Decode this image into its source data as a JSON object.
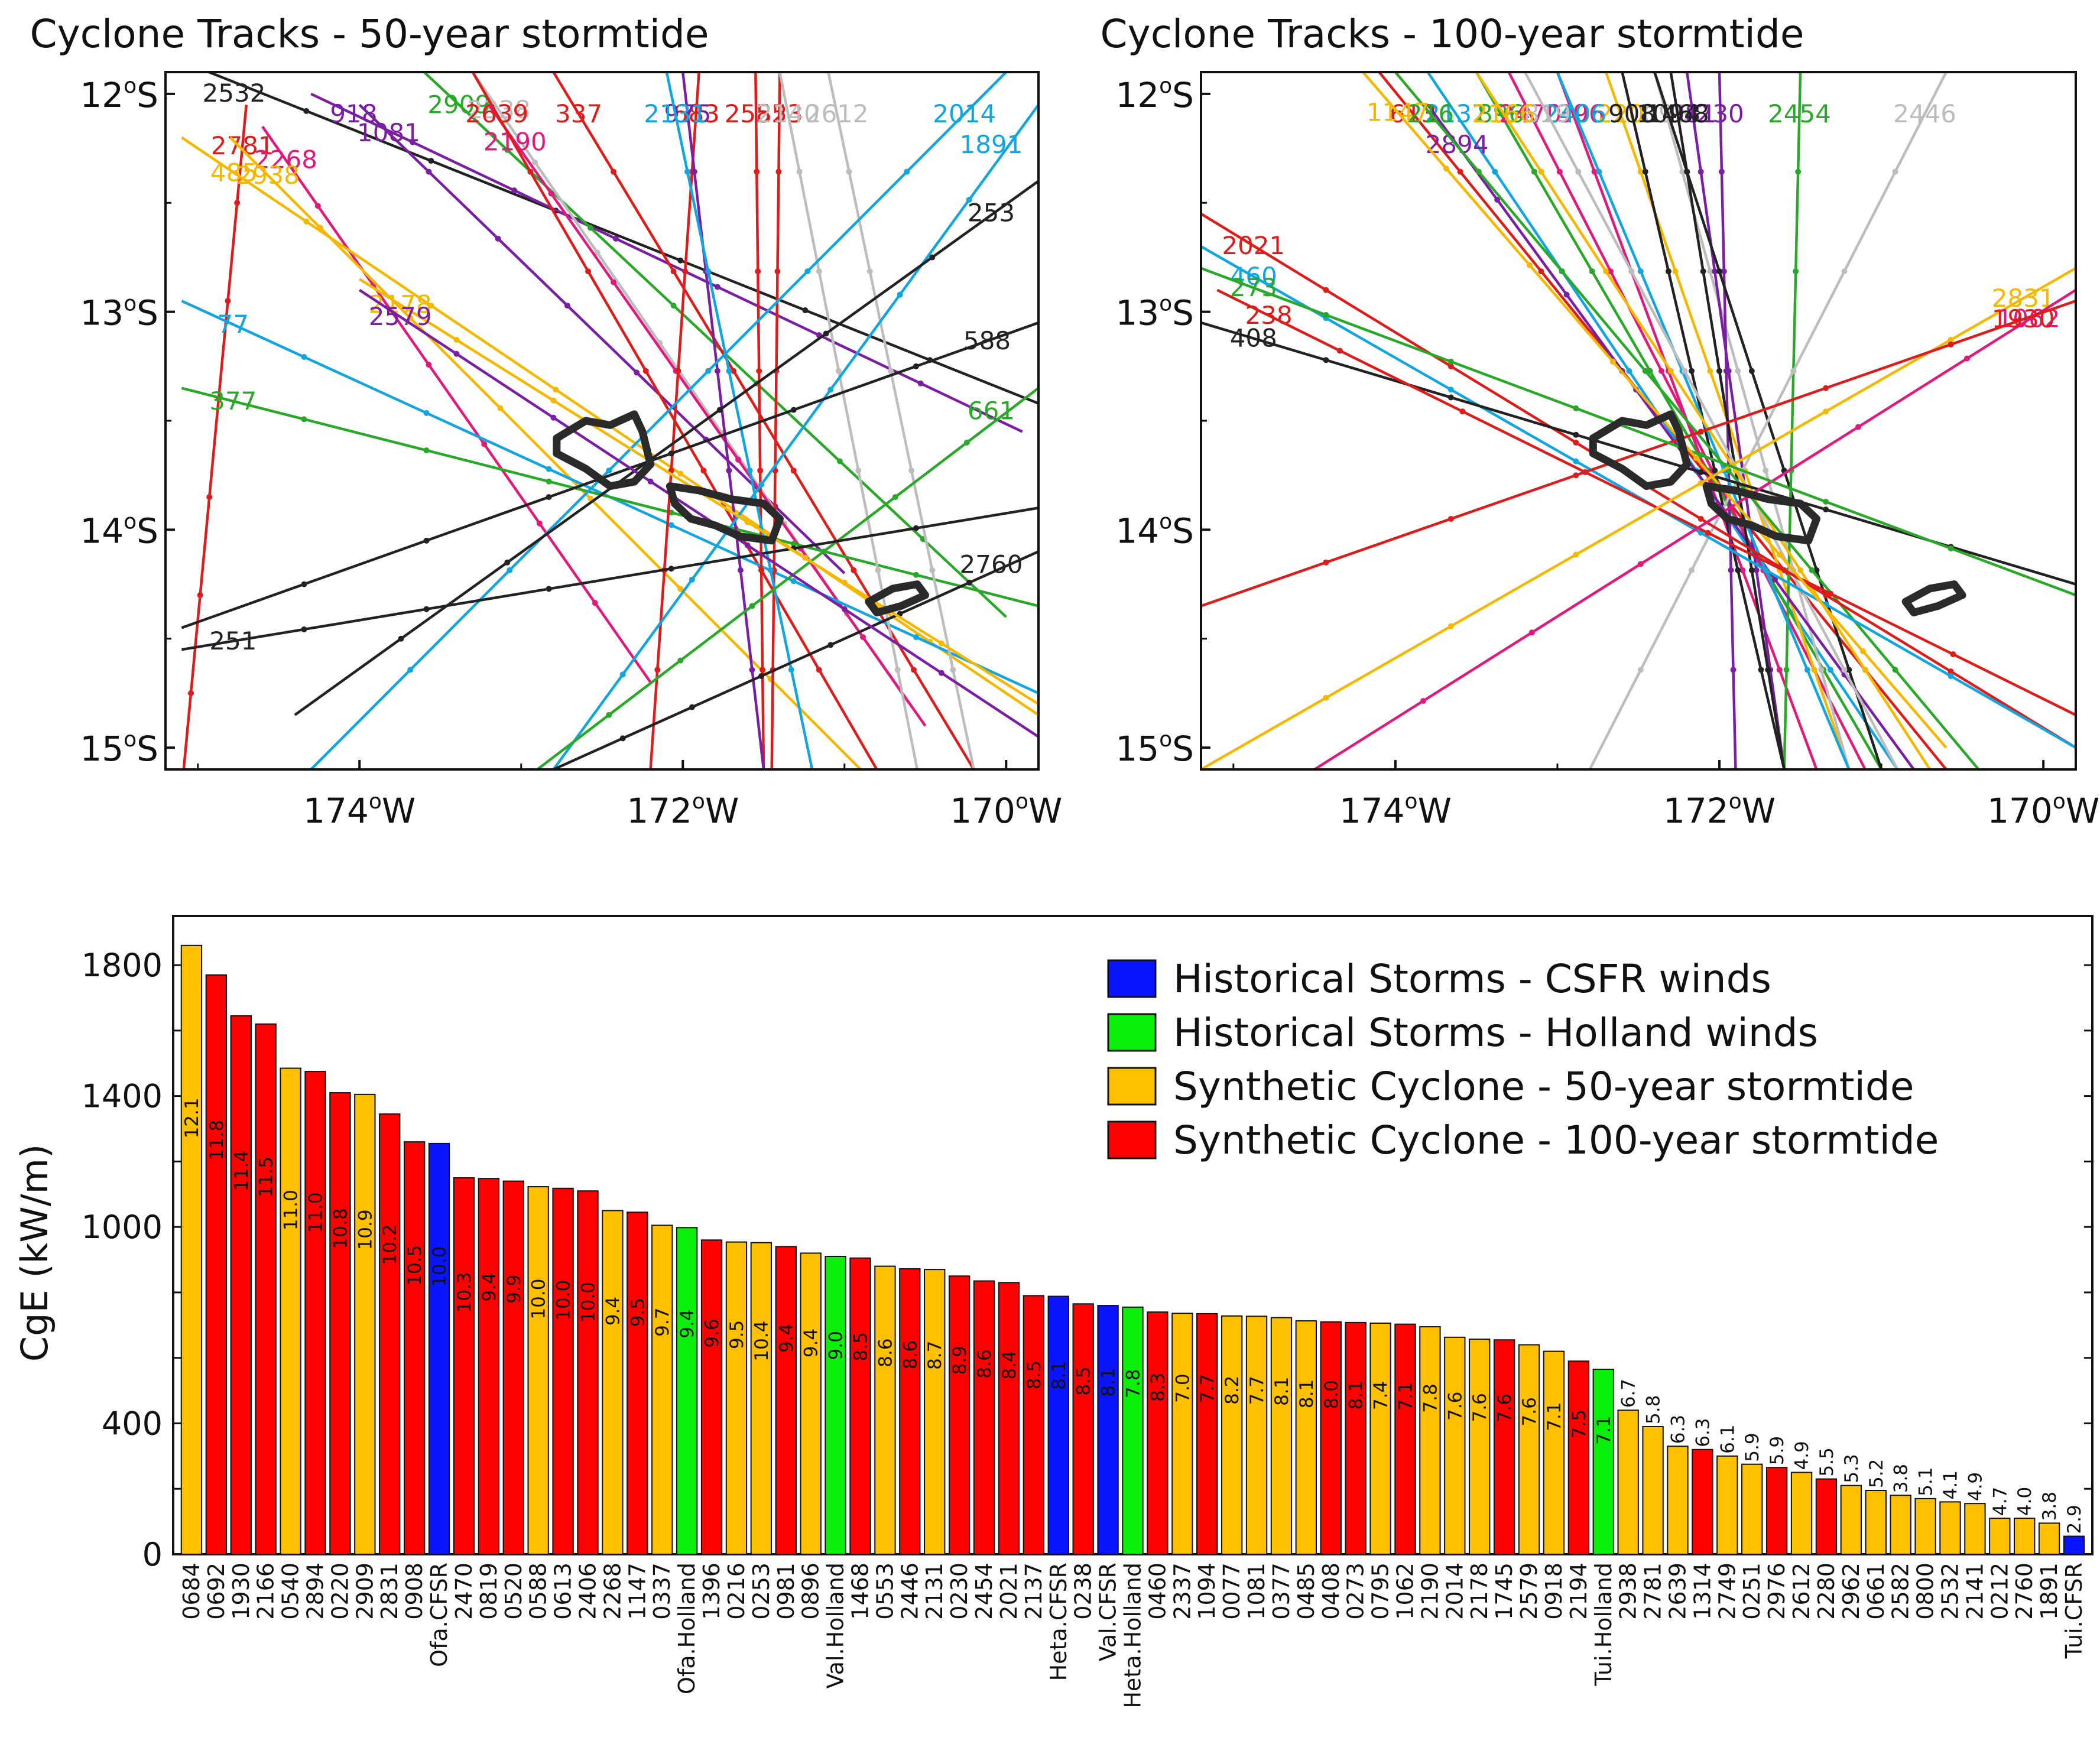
{
  "chart_data": [
    {
      "type": "map",
      "title": "Cyclone Tracks - 50-year stormtide",
      "x_ticks": [
        "174",
        "172",
        "170"
      ],
      "x_tick_values": [
        -174,
        -172,
        -170
      ],
      "x_suffix": "W",
      "y_ticks": [
        "12",
        "13",
        "14",
        "15"
      ],
      "y_tick_values": [
        -12,
        -13,
        -14,
        -15
      ],
      "y_suffix": "S",
      "degree_mark": "o",
      "xlim": [
        -175.2,
        -169.8
      ],
      "ylim": [
        -15.1,
        -11.9
      ],
      "tracks": [
        {
          "label": "2532",
          "color": "#222222",
          "start": [
            -175.1,
            -11.85
          ],
          "end": [
            -169.7,
            -13.45
          ]
        },
        {
          "label": "2781",
          "color": "#dd1c1c",
          "start": [
            -174.7,
            -12.05
          ],
          "end": [
            -175.1,
            -15.2
          ]
        },
        {
          "label": "918",
          "color": "#7a1fa2",
          "start": [
            -174.3,
            -12.0
          ],
          "end": [
            -169.9,
            -13.55
          ]
        },
        {
          "label": "1081",
          "color": "#7a1fa2",
          "start": [
            -174.0,
            -12.05
          ],
          "end": [
            -171.0,
            -14.2
          ]
        },
        {
          "label": "2268",
          "color": "#e0197d",
          "start": [
            -174.6,
            -12.15
          ],
          "end": [
            -172.2,
            -14.7
          ]
        },
        {
          "label": "2909",
          "color": "#2aa82a",
          "start": [
            -173.6,
            -11.9
          ],
          "end": [
            -170.0,
            -14.4
          ]
        },
        {
          "label": "2338",
          "color": "#bdbdbd",
          "start": [
            -173.3,
            -11.9
          ],
          "end": [
            -170.6,
            -14.8
          ]
        },
        {
          "label": "2190",
          "color": "#e0197d",
          "start": [
            -173.2,
            -12.05
          ],
          "end": [
            -170.5,
            -14.9
          ]
        },
        {
          "label": "2639",
          "color": "#dd1c1c",
          "start": [
            -173.3,
            -11.9
          ],
          "end": [
            -170.8,
            -15.1
          ]
        },
        {
          "label": "337",
          "color": "#dd1c1c",
          "start": [
            -172.8,
            -11.9
          ],
          "end": [
            -170.2,
            -15.1
          ]
        },
        {
          "label": "2938",
          "color": "#f5b800",
          "start": [
            -174.8,
            -12.2
          ],
          "end": [
            -170.9,
            -15.1
          ]
        },
        {
          "label": "485",
          "color": "#f5b800",
          "start": [
            -175.1,
            -12.2
          ],
          "end": [
            -169.7,
            -14.9
          ]
        },
        {
          "label": "77",
          "color": "#12a5de",
          "start": [
            -175.1,
            -12.95
          ],
          "end": [
            -169.8,
            -14.75
          ]
        },
        {
          "label": "377",
          "color": "#2aa82a",
          "start": [
            -175.1,
            -13.35
          ],
          "end": [
            -169.8,
            -14.35
          ]
        },
        {
          "label": "683",
          "color": "#dd1c1c",
          "start": [
            -171.9,
            -11.9
          ],
          "end": [
            -172.2,
            -15.1
          ]
        },
        {
          "label": "2582",
          "color": "#dd1c1c",
          "start": [
            -171.55,
            -11.9
          ],
          "end": [
            -171.5,
            -15.1
          ]
        },
        {
          "label": "553",
          "color": "#dd1c1c",
          "start": [
            -171.4,
            -11.9
          ],
          "end": [
            -171.45,
            -15.1
          ]
        },
        {
          "label": "975",
          "color": "#7a1fa2",
          "start": [
            -172.0,
            -11.9
          ],
          "end": [
            -171.5,
            -15.1
          ]
        },
        {
          "label": "2131",
          "color": "#12a5de",
          "start": [
            -172.1,
            -11.9
          ],
          "end": [
            -171.2,
            -15.1
          ]
        },
        {
          "label": "2140",
          "color": "#bdbdbd",
          "start": [
            -171.4,
            -11.9
          ],
          "end": [
            -170.55,
            -15.1
          ]
        },
        {
          "label": "2612",
          "color": "#bdbdbd",
          "start": [
            -171.1,
            -11.9
          ],
          "end": [
            -170.2,
            -15.1
          ]
        },
        {
          "label": "2014",
          "color": "#12a5de",
          "start": [
            -170.0,
            -11.9
          ],
          "end": [
            -174.3,
            -15.1
          ]
        },
        {
          "label": "1891",
          "color": "#12a5de",
          "start": [
            -169.8,
            -12.05
          ],
          "end": [
            -172.8,
            -15.1
          ]
        },
        {
          "label": "253",
          "color": "#222222",
          "start": [
            -169.8,
            -12.4
          ],
          "end": [
            -174.4,
            -14.85
          ]
        },
        {
          "label": "588",
          "color": "#222222",
          "start": [
            -169.8,
            -13.05
          ],
          "end": [
            -175.1,
            -14.45
          ]
        },
        {
          "label": "661",
          "color": "#2aa82a",
          "start": [
            -169.8,
            -13.35
          ],
          "end": [
            -172.9,
            -15.1
          ]
        },
        {
          "label": "251",
          "color": "#222222",
          "start": [
            -175.1,
            -14.55
          ],
          "end": [
            -169.8,
            -13.9
          ]
        },
        {
          "label": "2760",
          "color": "#222222",
          "start": [
            -169.8,
            -14.1
          ],
          "end": [
            -172.8,
            -15.1
          ]
        },
        {
          "label": "2178",
          "color": "#f5b800",
          "start": [
            -174.0,
            -12.85
          ],
          "end": [
            -169.8,
            -14.8
          ]
        },
        {
          "label": "2579",
          "color": "#7a1fa2",
          "start": [
            -174.0,
            -12.9
          ],
          "end": [
            -169.8,
            -14.95
          ]
        }
      ]
    },
    {
      "type": "map",
      "title": "Cyclone Tracks - 100-year stormtide",
      "x_ticks": [
        "174",
        "172",
        "170"
      ],
      "x_tick_values": [
        -174,
        -172,
        -170
      ],
      "x_suffix": "W",
      "y_ticks": [
        "12",
        "13",
        "14",
        "15"
      ],
      "y_tick_values": [
        -12,
        -13,
        -14,
        -15
      ],
      "y_suffix": "S",
      "degree_mark": "o",
      "xlim": [
        -175.2,
        -169.8
      ],
      "ylim": [
        -15.1,
        -11.9
      ],
      "tracks": [
        {
          "label": "613",
          "color": "#dd1c1c",
          "start": [
            -174.1,
            -11.9
          ],
          "end": [
            -170.6,
            -15.1
          ]
        },
        {
          "label": "2137",
          "color": "#12a5de",
          "start": [
            -173.8,
            -11.9
          ],
          "end": [
            -170.9,
            -15.1
          ]
        },
        {
          "label": "896",
          "color": "#2aa82a",
          "start": [
            -173.5,
            -11.9
          ],
          "end": [
            -171.0,
            -15.1
          ]
        },
        {
          "label": "1396",
          "color": "#e0197d",
          "start": [
            -173.0,
            -11.9
          ],
          "end": [
            -171.4,
            -15.1
          ]
        },
        {
          "label": "2470",
          "color": "#e0197d",
          "start": [
            -173.3,
            -11.9
          ],
          "end": [
            -171.1,
            -15.1
          ]
        },
        {
          "label": "220",
          "color": "#f5b800",
          "start": [
            -172.7,
            -11.9
          ],
          "end": [
            -171.2,
            -15.1
          ]
        },
        {
          "label": "695",
          "color": "#bdbdbd",
          "start": [
            -172.4,
            -11.9
          ],
          "end": [
            -171.2,
            -15.1
          ]
        },
        {
          "label": "908",
          "color": "#222222",
          "start": [
            -172.6,
            -11.9
          ],
          "end": [
            -171.6,
            -15.1
          ]
        },
        {
          "label": "981",
          "color": "#7a1fa2",
          "start": [
            -172.2,
            -11.9
          ],
          "end": [
            -171.6,
            -15.1
          ]
        },
        {
          "label": "230",
          "color": "#7a1fa2",
          "start": [
            -172.0,
            -11.9
          ],
          "end": [
            -171.9,
            -15.1
          ]
        },
        {
          "label": "1094",
          "color": "#222222",
          "start": [
            -172.4,
            -11.9
          ],
          "end": [
            -171.0,
            -15.1
          ]
        },
        {
          "label": "2454",
          "color": "#2aa82a",
          "start": [
            -171.5,
            -11.9
          ],
          "end": [
            -171.6,
            -15.1
          ]
        },
        {
          "label": "2446",
          "color": "#bdbdbd",
          "start": [
            -170.6,
            -11.9
          ],
          "end": [
            -172.8,
            -15.1
          ]
        },
        {
          "label": "2894",
          "color": "#7a1fa2",
          "start": [
            -173.8,
            -12.05
          ],
          "end": [
            -170.8,
            -15.1
          ]
        },
        {
          "label": "2406",
          "color": "#12a5de",
          "start": [
            -173.0,
            -11.9
          ],
          "end": [
            -171.2,
            -15.1
          ]
        },
        {
          "label": "1468",
          "color": "#222222",
          "start": [
            -172.3,
            -11.9
          ],
          "end": [
            -171.6,
            -15.1
          ]
        },
        {
          "label": "819",
          "color": "#bdbdbd",
          "start": [
            -173.2,
            -11.9
          ],
          "end": [
            -170.9,
            -15.1
          ]
        },
        {
          "label": "2166",
          "color": "#f5b800",
          "start": [
            -173.5,
            -11.9
          ],
          "end": [
            -170.7,
            -15.1
          ]
        },
        {
          "label": "216",
          "color": "#2aa82a",
          "start": [
            -174.0,
            -11.9
          ],
          "end": [
            -170.4,
            -15.1
          ]
        },
        {
          "label": "2021",
          "color": "#dd1c1c",
          "start": [
            -175.2,
            -12.55
          ],
          "end": [
            -169.8,
            -15.0
          ]
        },
        {
          "label": "460",
          "color": "#12a5de",
          "start": [
            -175.2,
            -12.7
          ],
          "end": [
            -169.8,
            -15.0
          ]
        },
        {
          "label": "408",
          "color": "#222222",
          "start": [
            -175.2,
            -13.05
          ],
          "end": [
            -169.8,
            -14.25
          ]
        },
        {
          "label": "238",
          "color": "#dd1c1c",
          "start": [
            -175.1,
            -12.9
          ],
          "end": [
            -169.8,
            -14.85
          ]
        },
        {
          "label": "2831",
          "color": "#f5b800",
          "start": [
            -169.8,
            -12.8
          ],
          "end": [
            -175.2,
            -15.1
          ]
        },
        {
          "label": "1062",
          "color": "#e0197d",
          "start": [
            -169.8,
            -12.9
          ],
          "end": [
            -174.5,
            -15.1
          ]
        },
        {
          "label": "1930",
          "color": "#dd1c1c",
          "start": [
            -169.8,
            -12.95
          ],
          "end": [
            -175.2,
            -14.35
          ]
        },
        {
          "label": "273",
          "color": "#2aa82a",
          "start": [
            -175.2,
            -12.8
          ],
          "end": [
            -169.8,
            -14.3
          ]
        },
        {
          "label": "1147",
          "color": "#f5b800",
          "start": [
            -174.2,
            -11.9
          ],
          "end": [
            -170.6,
            -15.0
          ]
        }
      ]
    },
    {
      "type": "bar",
      "ylabel": "CgE (kW/m)",
      "ylim": [
        0,
        1950
      ],
      "y_ticks": [
        0,
        400,
        1000,
        1400,
        1800
      ],
      "y_minor_step": 200,
      "legend_position": "top-right",
      "legend": [
        {
          "label": "Historical Storms - CSFR winds",
          "color": "#0a14ff"
        },
        {
          "label": "Historical Storms - Holland winds",
          "color": "#0af00a"
        },
        {
          "label": "Synthetic Cyclone - 50-year stormtide",
          "color": "#ffc000"
        },
        {
          "label": "Synthetic Cyclone - 100-year stormtide",
          "color": "#ff0000"
        }
      ],
      "series_colors": {
        "csfr": "#0a14ff",
        "holland": "#0af00a",
        "s50": "#ffc000",
        "s100": "#ff0000"
      },
      "categories": [
        "0684",
        "0692",
        "1930",
        "2166",
        "0540",
        "2894",
        "0220",
        "2909",
        "2831",
        "0908",
        "Ofa.CFSR",
        "2470",
        "0819",
        "0520",
        "0588",
        "0613",
        "2406",
        "2268",
        "1147",
        "0337",
        "Ofa.Holland",
        "1396",
        "0216",
        "0253",
        "0981",
        "0896",
        "Val.Holland",
        "1468",
        "0553",
        "2446",
        "2131",
        "0230",
        "2454",
        "2021",
        "2137",
        "Heta.CFSR",
        "0238",
        "Val.CFSR",
        "Heta.Holland",
        "0460",
        "2337",
        "1094",
        "0077",
        "1081",
        "0377",
        "0485",
        "0408",
        "0273",
        "0795",
        "1062",
        "2190",
        "2014",
        "2178",
        "1745",
        "2579",
        "0918",
        "2194",
        "Tui.Holland",
        "2938",
        "2781",
        "2639",
        "1314",
        "2749",
        "0251",
        "2976",
        "2612",
        "2280",
        "2962",
        "0661",
        "2582",
        "0800",
        "2532",
        "2141",
        "0212",
        "2760",
        "1891",
        "Tui.CFSR"
      ],
      "values": [
        1860,
        1770,
        1645,
        1620,
        1485,
        1475,
        1410,
        1405,
        1345,
        1260,
        1255,
        1150,
        1148,
        1140,
        1123,
        1118,
        1110,
        1050,
        1045,
        1005,
        998,
        960,
        954,
        952,
        940,
        920,
        910,
        905,
        880,
        872,
        870,
        850,
        835,
        830,
        790,
        788,
        765,
        760,
        755,
        740,
        736,
        735,
        728,
        727,
        723,
        713,
        710,
        708,
        706,
        703,
        695,
        663,
        657,
        655,
        640,
        620,
        590,
        565,
        440,
        390,
        330,
        320,
        300,
        275,
        265,
        250,
        230,
        210,
        195,
        180,
        170,
        160,
        155,
        110,
        110,
        95,
        55
      ],
      "types": [
        "s50",
        "s100",
        "s100",
        "s100",
        "s50",
        "s100",
        "s100",
        "s50",
        "s100",
        "s100",
        "csfr",
        "s100",
        "s100",
        "s100",
        "s50",
        "s100",
        "s100",
        "s50",
        "s100",
        "s50",
        "holland",
        "s100",
        "s50",
        "s50",
        "s100",
        "s50",
        "holland",
        "s100",
        "s50",
        "s100",
        "s50",
        "s100",
        "s100",
        "s100",
        "s100",
        "csfr",
        "s100",
        "csfr",
        "holland",
        "s100",
        "s50",
        "s100",
        "s50",
        "s50",
        "s50",
        "s50",
        "s100",
        "s100",
        "s50",
        "s100",
        "s50",
        "s50",
        "s50",
        "s100",
        "s50",
        "s50",
        "s100",
        "holland",
        "s50",
        "s50",
        "s50",
        "s100",
        "s50",
        "s50",
        "s100",
        "s50",
        "s100",
        "s50",
        "s50",
        "s50",
        "s50",
        "s50",
        "s50",
        "s50",
        "s50",
        "s50",
        "csfr"
      ],
      "bar_labels": [
        "12.1",
        "11.8",
        "11.4",
        "11.5",
        "11.0",
        "11.0",
        "10.8",
        "10.9",
        "10.2",
        "10.5",
        "10.0",
        "10.3",
        "9.4",
        "9.9",
        "10.0",
        "10.0",
        "10.0",
        "9.4",
        "9.5",
        "9.7",
        "9.4",
        "9.6",
        "9.5",
        "10.4",
        "9.4",
        "9.4",
        "9.0",
        "8.5",
        "8.6",
        "8.6",
        "8.7",
        "8.9",
        "8.6",
        "8.4",
        "8.5",
        "8.1",
        "8.5",
        "8.1",
        "7.8",
        "8.3",
        "7.0",
        "7.7",
        "8.2",
        "7.7",
        "8.1",
        "8.1",
        "8.0",
        "8.1",
        "7.4",
        "7.1",
        "7.8",
        "7.6",
        "7.6",
        "7.6",
        "7.6",
        "7.1",
        "7.5",
        "7.1",
        "6.7",
        "5.8",
        "6.3",
        "6.3",
        "6.1",
        "5.9",
        "5.9",
        "4.9",
        "5.5",
        "5.3",
        "5.2",
        "3.8",
        "5.1",
        "4.1",
        "4.9",
        "4.7",
        "4.0",
        "3.8",
        "2.9"
      ]
    }
  ]
}
